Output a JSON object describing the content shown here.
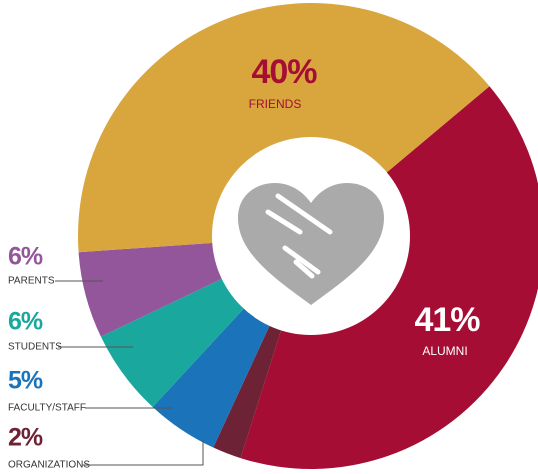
{
  "chart_data": {
    "type": "donut",
    "categories": [
      "ALUMNI",
      "ORGANIZATIONS",
      "FACULTY/STAFF",
      "STUDENTS",
      "PARENTS",
      "FRIENDS"
    ],
    "values": [
      41,
      2,
      5,
      6,
      6,
      40
    ],
    "value_labels": [
      "41%",
      "2%",
      "5%",
      "6%",
      "6%",
      "40%"
    ],
    "colors": [
      "#a50d34",
      "#6e2235",
      "#1b73ba",
      "#1aa89e",
      "#93569a",
      "#d9a53d"
    ]
  }
}
